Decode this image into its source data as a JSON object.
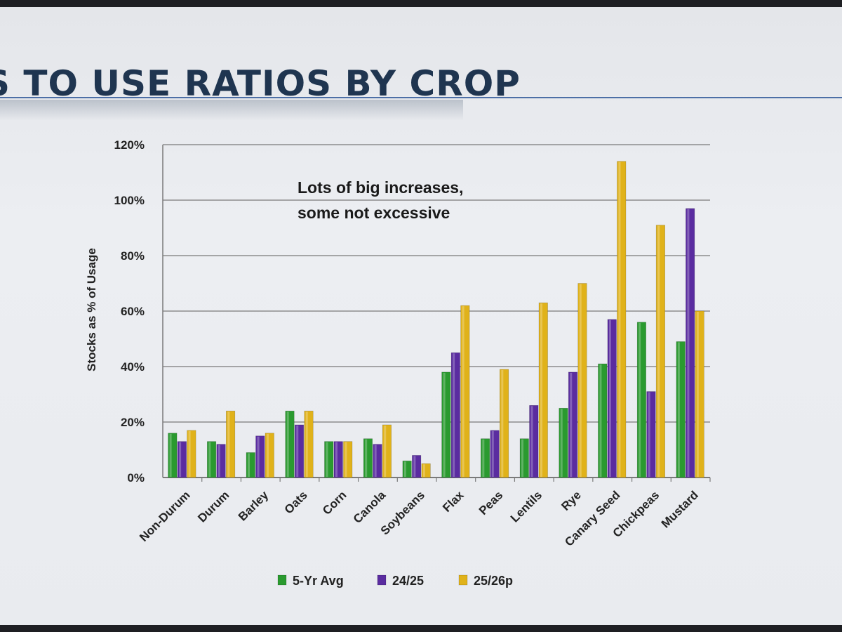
{
  "slide": {
    "title": "S TO USE RATIOS BY CROP"
  },
  "colors": {
    "series": [
      "#2a9a2f",
      "#5a2ca0",
      "#e0b21a"
    ],
    "grid": "#7a7a7a",
    "title": "#1f3550"
  },
  "chart_data": {
    "type": "bar",
    "title": "",
    "xlabel": "",
    "ylabel": "Stocks as % of Usage",
    "ylim": [
      0,
      120
    ],
    "yticks": [
      0,
      20,
      40,
      60,
      80,
      100,
      120
    ],
    "ytick_labels": [
      "0%",
      "20%",
      "40%",
      "60%",
      "80%",
      "100%",
      "120%"
    ],
    "grid": true,
    "legend_position": "bottom",
    "categories": [
      "Non-Durum",
      "Durum",
      "Barley",
      "Oats",
      "Corn",
      "Canola",
      "Soybeans",
      "Flax",
      "Peas",
      "Lentils",
      "Rye",
      "Canary Seed",
      "Chickpeas",
      "Mustard"
    ],
    "series": [
      {
        "name": "5-Yr Avg",
        "values": [
          16,
          13,
          9,
          24,
          13,
          14,
          6,
          38,
          14,
          14,
          25,
          41,
          56,
          49
        ]
      },
      {
        "name": "24/25",
        "values": [
          13,
          12,
          15,
          19,
          13,
          12,
          8,
          45,
          17,
          26,
          38,
          57,
          31,
          97
        ]
      },
      {
        "name": "25/26p",
        "values": [
          17,
          24,
          16,
          24,
          13,
          19,
          5,
          62,
          39,
          63,
          70,
          114,
          91,
          60
        ]
      }
    ],
    "annotation": [
      "Lots of big increases,",
      "some not excessive"
    ]
  }
}
